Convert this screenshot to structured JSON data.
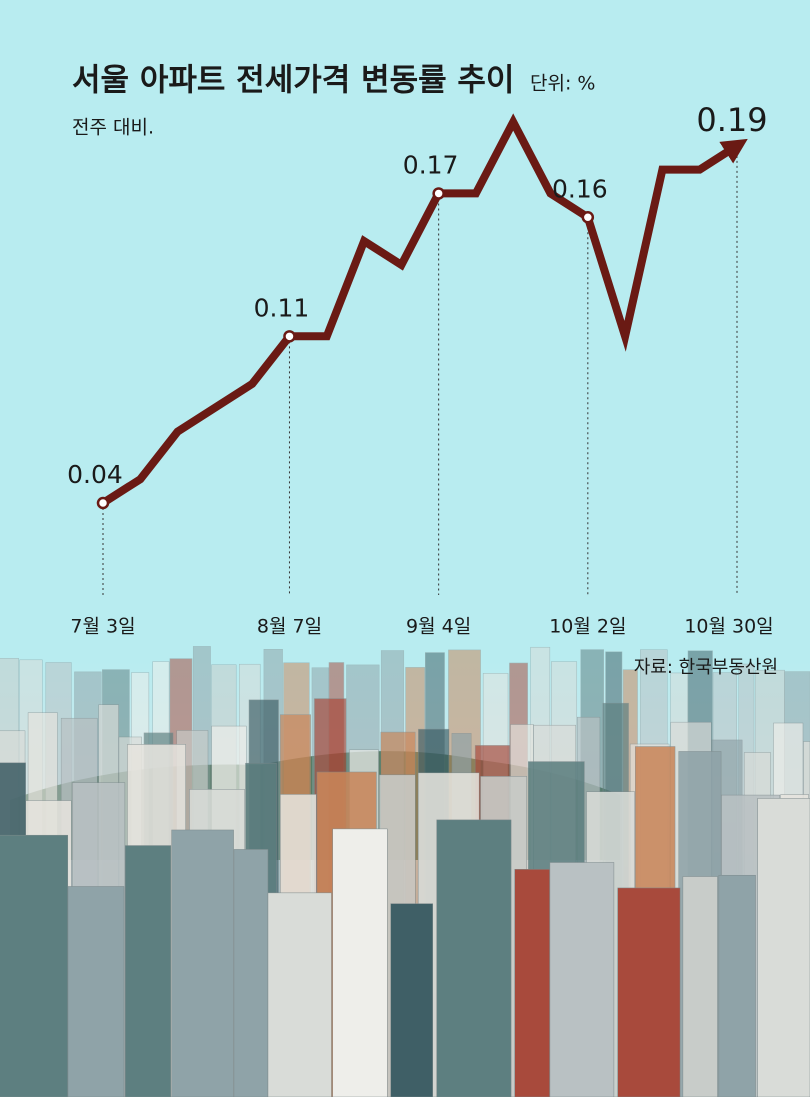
{
  "chart_data": {
    "type": "line",
    "title": "서울 아파트 전세가격 변동률 추이",
    "unit": "단위: %",
    "subtitle": "전주 대비.",
    "source": "자료: 한국부동산원",
    "categories": [
      "7월 3일",
      null,
      null,
      null,
      null,
      "8월 7일",
      null,
      null,
      null,
      "9월 4일",
      null,
      null,
      null,
      "10월 2일",
      null,
      null,
      null,
      "10월 30일"
    ],
    "series": [
      {
        "color": "#6a1a14",
        "values": [
          0.04,
          0.05,
          0.07,
          0.08,
          0.09,
          0.11,
          0.11,
          0.15,
          0.14,
          0.17,
          0.17,
          0.2,
          0.17,
          0.16,
          0.11,
          0.18,
          0.18,
          0.19
        ],
        "value_labels": [
          "0.04",
          null,
          null,
          null,
          null,
          "0.11",
          null,
          null,
          null,
          "0.17",
          null,
          null,
          null,
          "0.16",
          null,
          null,
          null,
          "0.19"
        ]
      }
    ]
  }
}
